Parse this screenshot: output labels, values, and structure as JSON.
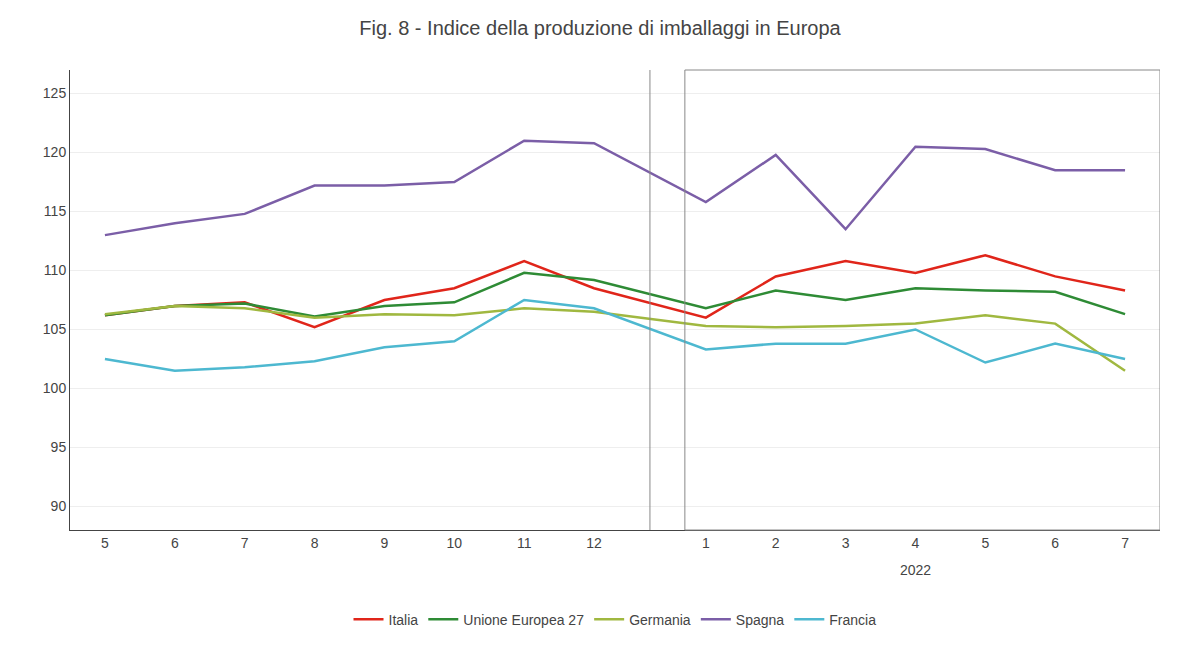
{
  "chart_data": {
    "type": "line",
    "title": "Fig. 8 - Indice della produzione di imballaggi in Europa",
    "categories": [
      "5",
      "6",
      "7",
      "8",
      "9",
      "10",
      "11",
      "12",
      "1",
      "2",
      "3",
      "4",
      "5",
      "6",
      "7"
    ],
    "annotations": [
      "2022"
    ],
    "series": [
      {
        "name": "Italia",
        "color": "#e0251a",
        "values": [
          106.2,
          107.0,
          107.3,
          105.2,
          107.5,
          108.5,
          110.8,
          108.5,
          106.0,
          109.5,
          110.8,
          109.8,
          111.3,
          109.5,
          108.3
        ]
      },
      {
        "name": "Unione Europea 27",
        "color": "#2e8b35",
        "values": [
          106.2,
          107.0,
          107.2,
          106.1,
          107.0,
          107.3,
          109.8,
          109.2,
          106.8,
          108.3,
          107.5,
          108.5,
          108.3,
          108.2,
          106.3
        ]
      },
      {
        "name": "Germania",
        "color": "#a0b840",
        "values": [
          106.3,
          107.0,
          106.8,
          106.0,
          106.3,
          106.2,
          106.8,
          106.5,
          105.3,
          105.2,
          105.3,
          105.5,
          106.2,
          105.5,
          101.5
        ]
      },
      {
        "name": "Spagna",
        "color": "#7b5ea7",
        "values": [
          113.0,
          114.0,
          114.8,
          117.2,
          117.2,
          117.5,
          121.0,
          120.8,
          115.8,
          119.8,
          113.5,
          120.5,
          120.3,
          118.5,
          118.5
        ]
      },
      {
        "name": "Francia",
        "color": "#4db8d0",
        "values": [
          102.5,
          101.5,
          101.8,
          102.3,
          103.5,
          104.0,
          107.5,
          106.8,
          103.3,
          103.8,
          103.8,
          105.0,
          102.2,
          103.8,
          102.5
        ]
      }
    ],
    "ylim": [
      88,
      127
    ],
    "yticks": [
      90,
      95,
      100,
      105,
      110,
      115,
      120,
      125
    ],
    "grid": true,
    "legend": "bottom"
  }
}
